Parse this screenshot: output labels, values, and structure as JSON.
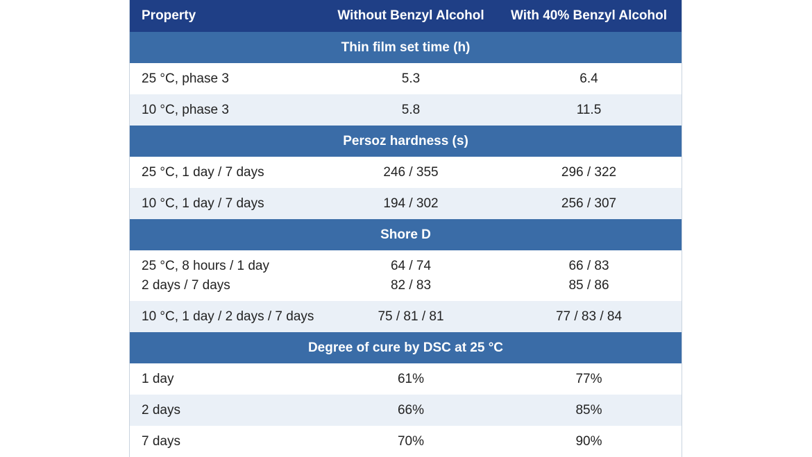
{
  "header": {
    "col1": "Property",
    "col2": "Without Benzyl Alcohol",
    "col3": "With 40% Benzyl Alcohol"
  },
  "sections": [
    {
      "title": "Thin film set time (h)",
      "rows": [
        {
          "label": [
            "25 °C, phase 3"
          ],
          "without": [
            "5.3"
          ],
          "with": [
            "6.4"
          ]
        },
        {
          "label": [
            "10 °C, phase 3"
          ],
          "without": [
            "5.8"
          ],
          "with": [
            "11.5"
          ]
        }
      ]
    },
    {
      "title": "Persoz hardness (s)",
      "rows": [
        {
          "label": [
            "25 °C, 1 day / 7 days"
          ],
          "without": [
            "246 / 355"
          ],
          "with": [
            "296 / 322"
          ]
        },
        {
          "label": [
            "10 °C, 1 day / 7 days"
          ],
          "without": [
            "194 / 302"
          ],
          "with": [
            "256 / 307"
          ]
        }
      ]
    },
    {
      "title": "Shore D",
      "rows": [
        {
          "label": [
            "25 °C, 8 hours / 1 day",
            "2 days / 7 days"
          ],
          "without": [
            "64 / 74",
            "82 / 83"
          ],
          "with": [
            "66 / 83",
            "85 / 86"
          ]
        },
        {
          "label": [
            "10 °C, 1 day / 2 days / 7 days"
          ],
          "without": [
            "75 / 81 / 81"
          ],
          "with": [
            "77 / 83 / 84"
          ]
        }
      ]
    },
    {
      "title": "Degree of cure by DSC at 25 °C",
      "rows": [
        {
          "label": [
            "1 day"
          ],
          "without": [
            "61%"
          ],
          "with": [
            "77%"
          ]
        },
        {
          "label": [
            "2 days"
          ],
          "without": [
            "66%"
          ],
          "with": [
            "85%"
          ]
        },
        {
          "label": [
            "7 days"
          ],
          "without": [
            "70%"
          ],
          "with": [
            "90%"
          ]
        }
      ]
    }
  ]
}
